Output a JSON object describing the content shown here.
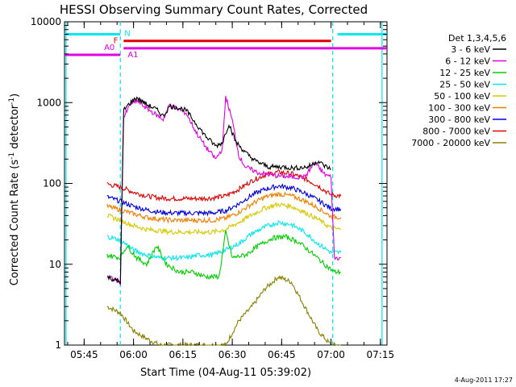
{
  "colors": {
    "black": "#000000",
    "magenta": "#e000e0",
    "green": "#00d000",
    "cyan": "#00e8f0",
    "yellow": "#d8c800",
    "orange": "#f08000",
    "blue": "#0000e0",
    "red": "#e00000",
    "olive": "#888000"
  },
  "chart_data": {
    "type": "line",
    "title": "HESSI Observing Summary Count Rates, Corrected",
    "xlabel": "Start Time (04-Aug-11 05:39:02)",
    "ylabel": "Corrected Count Rate (s^-1 detector^-1)",
    "ylabel_main": "Corrected Count Rate (s",
    "ylabel_exp1": "-1",
    "ylabel_mid": " detector",
    "ylabel_exp2": "-1",
    "ylabel_end": ")",
    "y_scale": "log",
    "ylim": [
      1,
      10000
    ],
    "xlim": [
      "05:39:02",
      "07:17:00"
    ],
    "x_ticks": [
      "05:45",
      "06:00",
      "06:15",
      "06:30",
      "06:45",
      "07:00",
      "07:15"
    ],
    "y_ticks": [
      "1",
      "10",
      "100",
      "1000",
      "10000"
    ],
    "legend_title": "Det 1,3,4,5,6",
    "legend_position": "right",
    "timestamp": "4-Aug-2011 17:27",
    "annotations": {
      "N": "N",
      "F": "F",
      "A0": "A0",
      "A1": "A1"
    },
    "series": [
      {
        "name": "3 - 6 keV",
        "color": "#000000",
        "points": [
          [
            "05:52",
            7
          ],
          [
            "05:56",
            6
          ],
          [
            "05:57",
            800
          ],
          [
            "05:59",
            1000
          ],
          [
            "06:01",
            1150
          ],
          [
            "06:04",
            950
          ],
          [
            "06:07",
            820
          ],
          [
            "06:09",
            680
          ],
          [
            "06:11",
            900
          ],
          [
            "06:13",
            880
          ],
          [
            "06:16",
            800
          ],
          [
            "06:19",
            550
          ],
          [
            "06:22",
            380
          ],
          [
            "06:25",
            290
          ],
          [
            "06:27",
            320
          ],
          [
            "06:29",
            550
          ],
          [
            "06:31",
            330
          ],
          [
            "06:34",
            240
          ],
          [
            "06:37",
            190
          ],
          [
            "06:41",
            160
          ],
          [
            "06:45",
            160
          ],
          [
            "06:49",
            155
          ],
          [
            "06:53",
            160
          ],
          [
            "06:56",
            190
          ],
          [
            "06:58",
            165
          ],
          [
            "07:00",
            150
          ]
        ]
      },
      {
        "name": "6 - 12 keV",
        "color": "#e000e0",
        "points": [
          [
            "05:52",
            7
          ],
          [
            "05:56",
            6
          ],
          [
            "05:57",
            650
          ],
          [
            "05:59",
            950
          ],
          [
            "06:01",
            1050
          ],
          [
            "06:04",
            850
          ],
          [
            "06:07",
            700
          ],
          [
            "06:09",
            620
          ],
          [
            "06:11",
            950
          ],
          [
            "06:13",
            850
          ],
          [
            "06:16",
            740
          ],
          [
            "06:19",
            430
          ],
          [
            "06:22",
            280
          ],
          [
            "06:25",
            200
          ],
          [
            "06:27",
            270
          ],
          [
            "06:28",
            1200
          ],
          [
            "06:30",
            600
          ],
          [
            "06:32",
            220
          ],
          [
            "06:34",
            160
          ],
          [
            "06:38",
            135
          ],
          [
            "06:43",
            125
          ],
          [
            "06:48",
            120
          ],
          [
            "06:52",
            120
          ],
          [
            "06:55",
            180
          ],
          [
            "06:58",
            130
          ],
          [
            "07:00",
            120
          ],
          [
            "07:01",
            12
          ],
          [
            "07:03",
            12
          ]
        ]
      },
      {
        "name": "12 - 25 keV",
        "color": "#00d000",
        "points": [
          [
            "05:52",
            13
          ],
          [
            "05:56",
            12
          ],
          [
            "05:58",
            17
          ],
          [
            "06:01",
            12
          ],
          [
            "06:04",
            10
          ],
          [
            "06:07",
            17
          ],
          [
            "06:10",
            10
          ],
          [
            "06:14",
            8
          ],
          [
            "06:18",
            8
          ],
          [
            "06:22",
            7
          ],
          [
            "06:26",
            7
          ],
          [
            "06:28",
            25
          ],
          [
            "06:30",
            12
          ],
          [
            "06:34",
            13
          ],
          [
            "06:38",
            17
          ],
          [
            "06:42",
            21
          ],
          [
            "06:46",
            22
          ],
          [
            "06:50",
            19
          ],
          [
            "06:54",
            14
          ],
          [
            "06:58",
            10
          ],
          [
            "07:01",
            8
          ],
          [
            "07:03",
            8
          ]
        ]
      },
      {
        "name": "25 - 50 keV",
        "color": "#00e8f0",
        "points": [
          [
            "05:52",
            22
          ],
          [
            "05:56",
            20
          ],
          [
            "06:00",
            15
          ],
          [
            "06:04",
            13
          ],
          [
            "06:08",
            12
          ],
          [
            "06:12",
            12
          ],
          [
            "06:16",
            12
          ],
          [
            "06:20",
            13
          ],
          [
            "06:24",
            13
          ],
          [
            "06:28",
            15
          ],
          [
            "06:32",
            18
          ],
          [
            "06:36",
            24
          ],
          [
            "06:40",
            29
          ],
          [
            "06:44",
            33
          ],
          [
            "06:48",
            31
          ],
          [
            "06:52",
            25
          ],
          [
            "06:56",
            18
          ],
          [
            "07:00",
            14
          ],
          [
            "07:03",
            14
          ]
        ]
      },
      {
        "name": "50 - 100 keV",
        "color": "#d8c800",
        "points": [
          [
            "05:52",
            40
          ],
          [
            "05:56",
            35
          ],
          [
            "06:00",
            30
          ],
          [
            "06:04",
            27
          ],
          [
            "06:08",
            26
          ],
          [
            "06:12",
            25
          ],
          [
            "06:16",
            25
          ],
          [
            "06:20",
            25
          ],
          [
            "06:24",
            25
          ],
          [
            "06:28",
            27
          ],
          [
            "06:32",
            33
          ],
          [
            "06:36",
            41
          ],
          [
            "06:40",
            50
          ],
          [
            "06:44",
            55
          ],
          [
            "06:48",
            52
          ],
          [
            "06:52",
            44
          ],
          [
            "06:56",
            36
          ],
          [
            "07:00",
            28
          ],
          [
            "07:03",
            27
          ]
        ]
      },
      {
        "name": "100 - 300 keV",
        "color": "#f08000",
        "points": [
          [
            "05:52",
            52
          ],
          [
            "05:56",
            47
          ],
          [
            "06:00",
            42
          ],
          [
            "06:04",
            38
          ],
          [
            "06:08",
            36
          ],
          [
            "06:12",
            35
          ],
          [
            "06:16",
            35
          ],
          [
            "06:20",
            35
          ],
          [
            "06:24",
            35
          ],
          [
            "06:28",
            37
          ],
          [
            "06:32",
            44
          ],
          [
            "06:36",
            56
          ],
          [
            "06:40",
            68
          ],
          [
            "06:44",
            74
          ],
          [
            "06:48",
            70
          ],
          [
            "06:52",
            61
          ],
          [
            "06:56",
            50
          ],
          [
            "07:00",
            39
          ],
          [
            "07:03",
            38
          ]
        ]
      },
      {
        "name": "300 - 800 keV",
        "color": "#0000e0",
        "points": [
          [
            "05:52",
            68
          ],
          [
            "05:56",
            60
          ],
          [
            "06:00",
            52
          ],
          [
            "06:04",
            47
          ],
          [
            "06:08",
            44
          ],
          [
            "06:12",
            43
          ],
          [
            "06:16",
            43
          ],
          [
            "06:20",
            43
          ],
          [
            "06:24",
            43
          ],
          [
            "06:28",
            46
          ],
          [
            "06:32",
            56
          ],
          [
            "06:36",
            72
          ],
          [
            "06:40",
            85
          ],
          [
            "06:44",
            93
          ],
          [
            "06:48",
            88
          ],
          [
            "06:52",
            76
          ],
          [
            "06:56",
            62
          ],
          [
            "07:00",
            49
          ],
          [
            "07:03",
            48
          ]
        ]
      },
      {
        "name": "800 - 7000 keV",
        "color": "#e00000",
        "points": [
          [
            "05:52",
            98
          ],
          [
            "05:56",
            90
          ],
          [
            "06:00",
            78
          ],
          [
            "06:04",
            70
          ],
          [
            "06:08",
            66
          ],
          [
            "06:12",
            65
          ],
          [
            "06:16",
            65
          ],
          [
            "06:20",
            65
          ],
          [
            "06:24",
            66
          ],
          [
            "06:28",
            70
          ],
          [
            "06:32",
            85
          ],
          [
            "06:36",
            108
          ],
          [
            "06:40",
            128
          ],
          [
            "06:44",
            138
          ],
          [
            "06:48",
            132
          ],
          [
            "06:52",
            115
          ],
          [
            "06:56",
            94
          ],
          [
            "07:00",
            72
          ],
          [
            "07:03",
            70
          ]
        ]
      },
      {
        "name": "7000 - 20000 keV",
        "color": "#888000",
        "points": [
          [
            "05:52",
            3
          ],
          [
            "05:56",
            2.5
          ],
          [
            "06:00",
            1.5
          ],
          [
            "06:04",
            1.2
          ],
          [
            "06:08",
            1
          ],
          [
            "06:12",
            1
          ],
          [
            "06:16",
            1
          ],
          [
            "06:20",
            1
          ],
          [
            "06:24",
            1
          ],
          [
            "06:28",
            1
          ],
          [
            "06:32",
            2
          ],
          [
            "06:36",
            3
          ],
          [
            "06:40",
            5
          ],
          [
            "06:44",
            7
          ],
          [
            "06:48",
            6
          ],
          [
            "06:52",
            3
          ],
          [
            "06:56",
            1.5
          ],
          [
            "07:00",
            1
          ],
          [
            "07:03",
            1
          ]
        ]
      }
    ],
    "attenuator_bars": [
      {
        "label": "N",
        "color": "#00e8f0",
        "value": 7000,
        "spans": [
          [
            "05:39:02",
            "05:56:00"
          ],
          [
            "07:02:00",
            "07:17:00"
          ]
        ]
      },
      {
        "label": "F",
        "color": "#e00000",
        "value": 5800,
        "spans": [
          [
            "05:57:00",
            "07:00:00"
          ]
        ]
      },
      {
        "label": "A1",
        "color": "#e000e0",
        "value": 4700,
        "spans": [
          [
            "05:57:00",
            "07:17:00"
          ]
        ]
      },
      {
        "label": "A0",
        "color": "#e000e0",
        "value": 3900,
        "spans": [
          [
            "05:39:02",
            "05:56:00"
          ]
        ]
      }
    ],
    "night_markers": [
      "05:39:30",
      "05:56:00",
      "07:00:30",
      "07:15:30"
    ]
  }
}
